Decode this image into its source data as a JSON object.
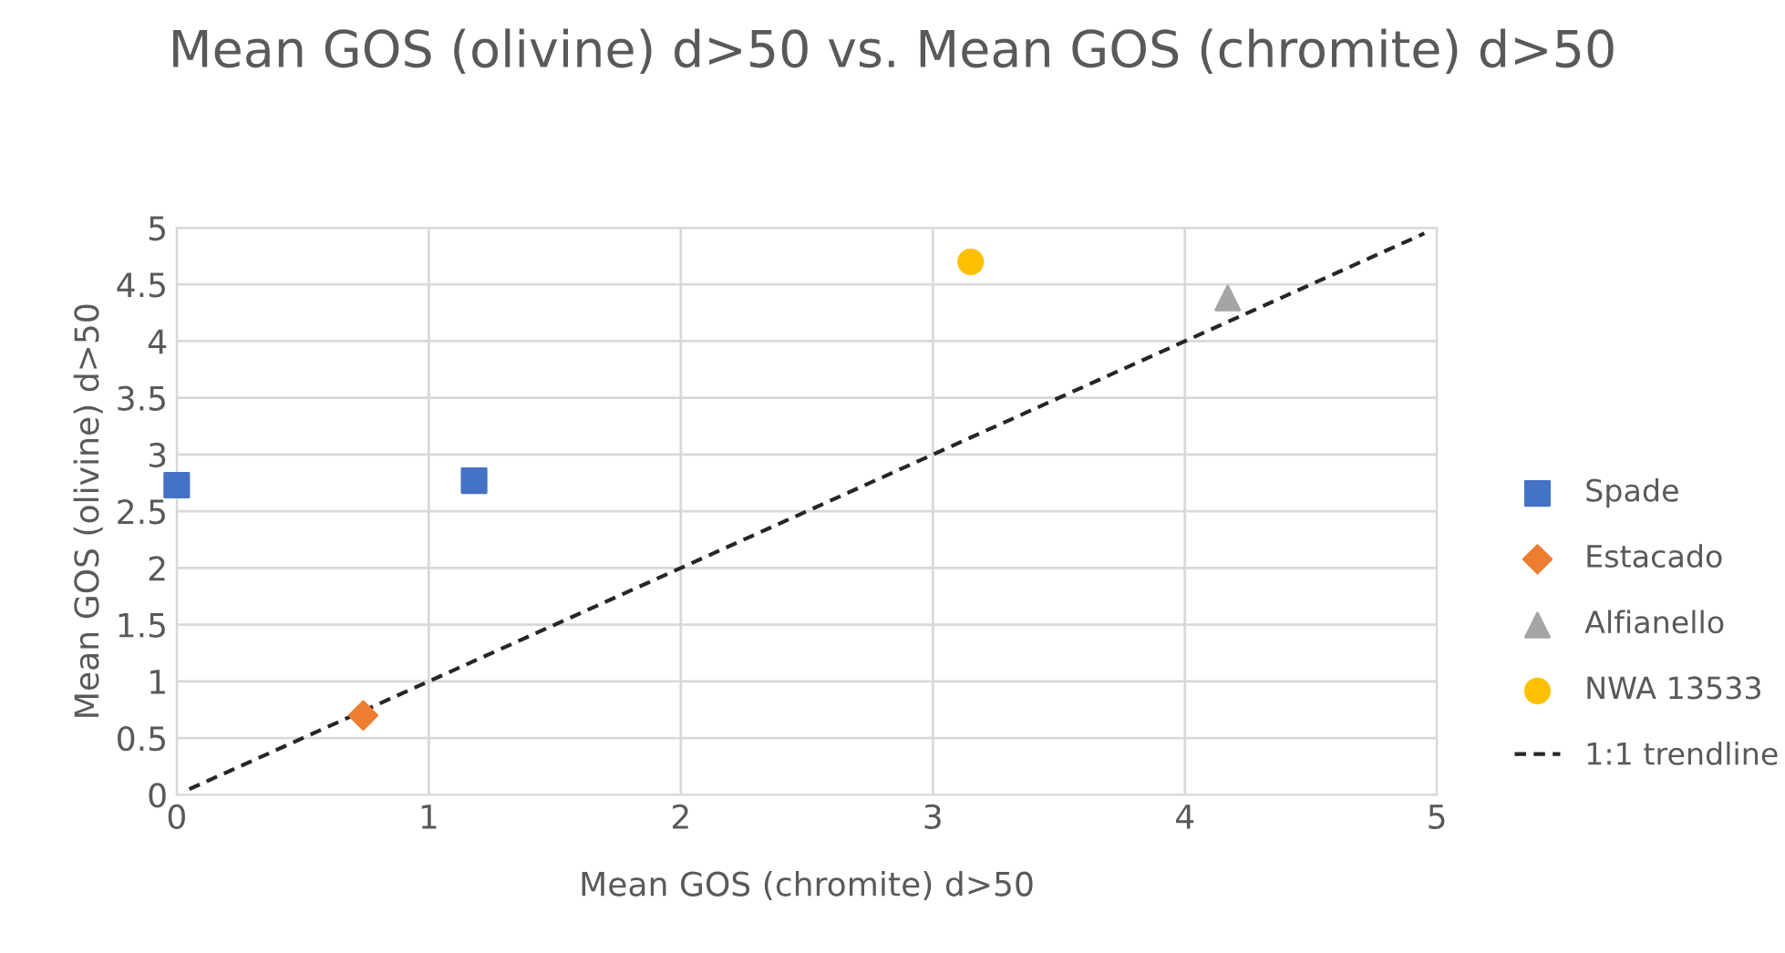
{
  "chart_data": {
    "type": "scatter",
    "title": "Mean GOS (olivine) d>50 vs. Mean GOS (chromite) d>50",
    "xlabel": "Mean GOS (chromite) d>50",
    "ylabel": "Mean GOS (olivine) d>50",
    "xlim": [
      0,
      5
    ],
    "xticks": [
      0,
      1,
      2,
      3,
      4,
      5
    ],
    "ylim": [
      0,
      5
    ],
    "yticks": [
      0,
      0.5,
      1,
      1.5,
      2,
      2.5,
      3,
      3.5,
      4,
      4.5,
      5
    ],
    "grid": true,
    "legend": "right",
    "series": [
      {
        "name": "Spade",
        "color": "#4472c4",
        "marker": "square",
        "x": [
          0,
          1.18
        ],
        "values": [
          2.73,
          2.77
        ]
      },
      {
        "name": "Estacado",
        "color": "#ed7d31",
        "marker": "diamond",
        "x": [
          0.74
        ],
        "values": [
          0.7
        ]
      },
      {
        "name": "Alfianello",
        "color": "#a5a5a5",
        "marker": "triangle",
        "x": [
          4.17
        ],
        "values": [
          4.38
        ]
      },
      {
        "name": "NWA 13533",
        "color": "#ffc000",
        "marker": "circle",
        "x": [
          3.15
        ],
        "values": [
          4.7
        ]
      },
      {
        "name": "1:1 trendline",
        "type": "line",
        "color": "#262626",
        "line_style": "dashed",
        "marker": "none",
        "x": [
          0.05,
          4.95
        ],
        "values": [
          0.05,
          4.95
        ]
      }
    ]
  }
}
